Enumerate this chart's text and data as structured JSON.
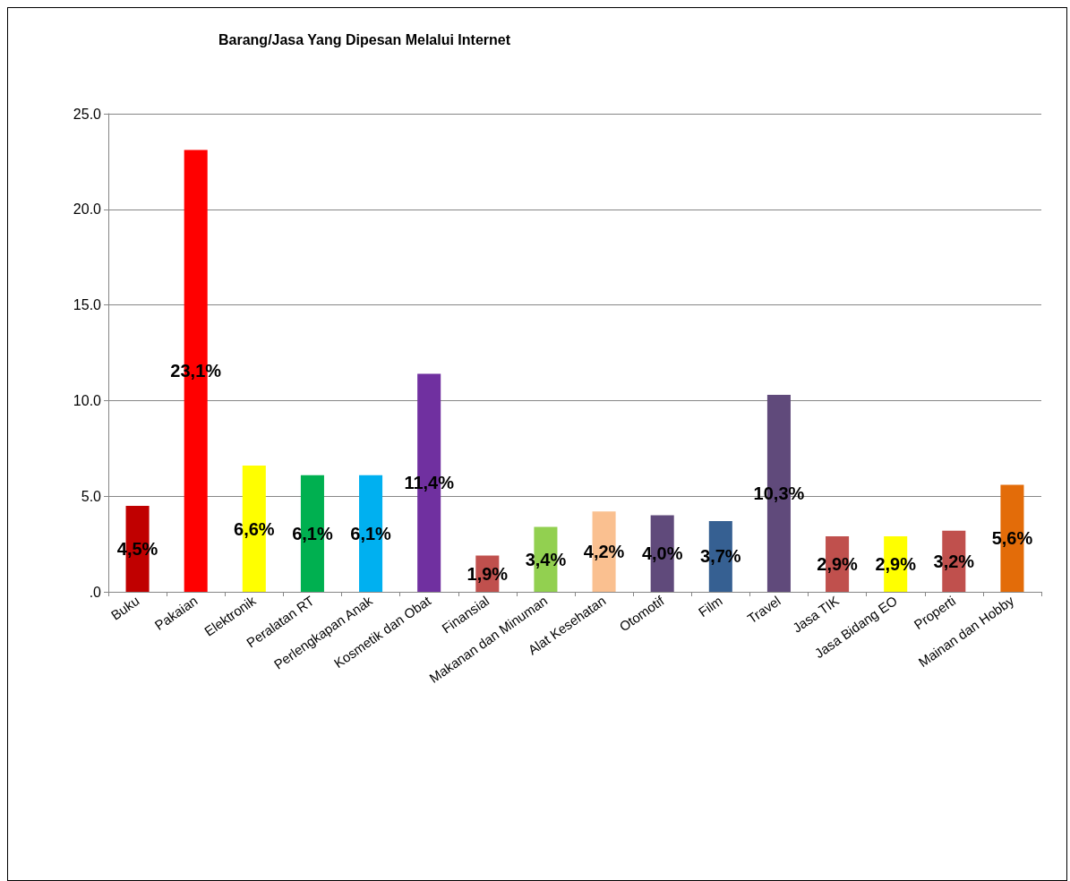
{
  "chart_data": {
    "type": "bar",
    "title": "Barang/Jasa Yang Dipesan Melalui Internet",
    "categories": [
      "Buku",
      "Pakaian",
      "Elektronik",
      "Peralatan RT",
      "Perlengkapan Anak",
      "Kosmetik dan Obat",
      "Finansial",
      "Makanan dan Minuman",
      "Alat Kesehatan",
      "Otomotif",
      "Film",
      "Travel",
      "Jasa TIK",
      "Jasa Bidang EO",
      "Properti",
      "Mainan dan Hobby"
    ],
    "values": [
      4.5,
      23.1,
      6.6,
      6.1,
      6.1,
      11.4,
      1.9,
      3.4,
      4.2,
      4.0,
      3.7,
      10.3,
      2.9,
      2.9,
      3.2,
      5.6
    ],
    "value_labels": [
      "4,5%",
      "23,1%",
      "6,6%",
      "6,1%",
      "6,1%",
      "11,4%",
      "1,9%",
      "3,4%",
      "4,2%",
      "4,0%",
      "3,7%",
      "10,3%",
      "2,9%",
      "2,9%",
      "3,2%",
      "5,6%"
    ],
    "colors": [
      "#c00000",
      "#ff0000",
      "#ffff00",
      "#00b050",
      "#00b0f0",
      "#7030a0",
      "#c0504d",
      "#92d050",
      "#fac090",
      "#604a7b",
      "#366092",
      "#604a7b",
      "#c0504d",
      "#ffff00",
      "#c0504d",
      "#e36c09"
    ],
    "ylim": [
      0,
      25
    ],
    "yticks": [
      {
        "value": 0,
        "label": ".0"
      },
      {
        "value": 5,
        "label": "5.0"
      },
      {
        "value": 10,
        "label": "10.0"
      },
      {
        "value": 15,
        "label": "15.0"
      },
      {
        "value": 20,
        "label": "20.0"
      },
      {
        "value": 25,
        "label": "25.0"
      }
    ],
    "grid": true
  }
}
